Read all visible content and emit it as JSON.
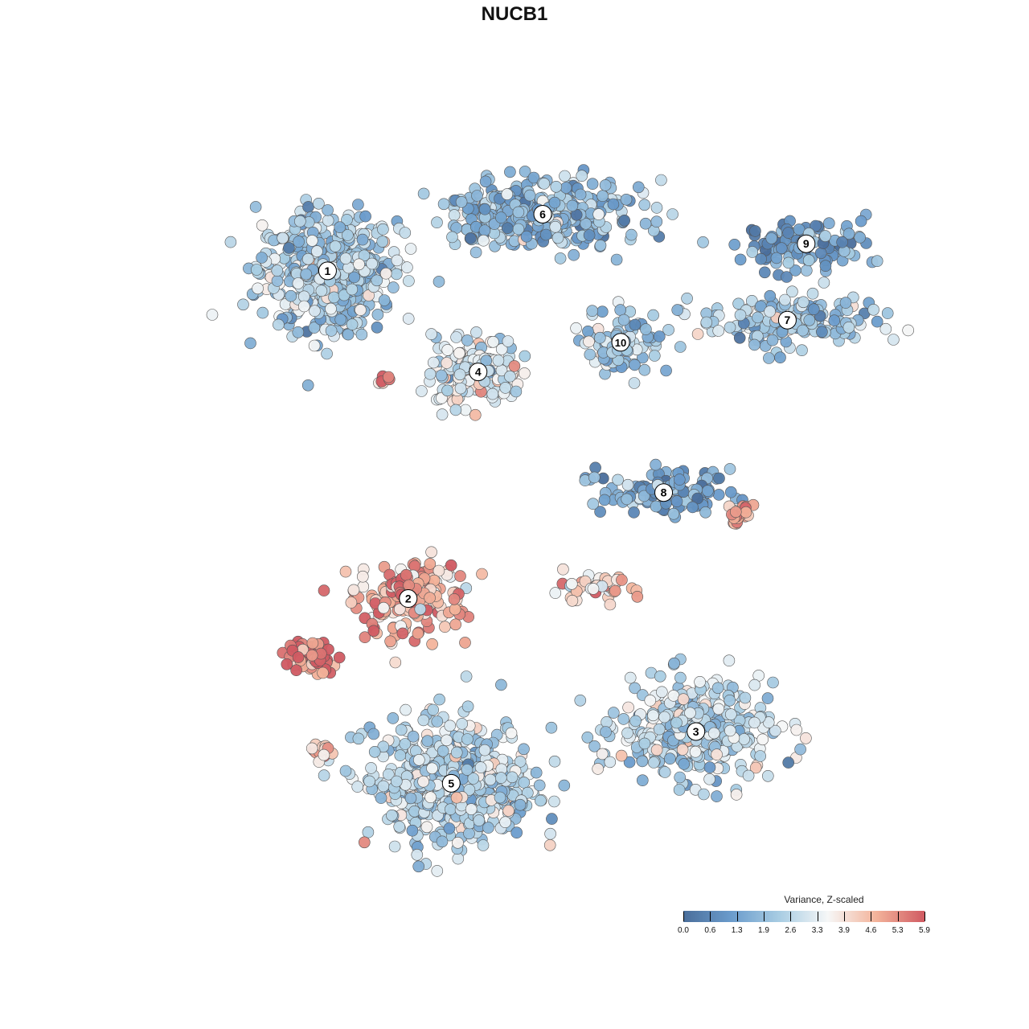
{
  "chart_data": {
    "type": "scatter",
    "title": "NUCB1",
    "xlabel": "",
    "ylabel": "",
    "grid": false,
    "axes_visible": false,
    "legend": {
      "title": "Variance, Z-scaled",
      "placement": "bottom-right",
      "ticks": [
        "0.0",
        "0.6",
        "1.3",
        "1.9",
        "2.6",
        "3.3",
        "3.9",
        "4.6",
        "5.3",
        "5.9"
      ],
      "range": [
        0.0,
        5.9
      ],
      "colors": [
        "#4a6e9b",
        "#6b9ccc",
        "#a9cde3",
        "#f6f7f7",
        "#f3b39a",
        "#d05a62"
      ]
    },
    "clusters": [
      {
        "label": "1",
        "cx": -7.2,
        "cy": 7.9,
        "sx": 2.3,
        "sy": 2.1,
        "n": 520,
        "mean": 2.3
      },
      {
        "label": "2",
        "cx": -4.2,
        "cy": -5.4,
        "sx": 1.9,
        "sy": 1.5,
        "n": 170,
        "mean": 4.6
      },
      {
        "label": "3",
        "cx": 6.5,
        "cy": -10.8,
        "sx": 2.6,
        "sy": 1.8,
        "n": 360,
        "mean": 2.5
      },
      {
        "label": "4",
        "cx": -1.6,
        "cy": 3.8,
        "sx": 1.5,
        "sy": 1.3,
        "n": 190,
        "mean": 3.2
      },
      {
        "label": "5",
        "cx": -2.6,
        "cy": -12.9,
        "sx": 2.8,
        "sy": 2.2,
        "n": 520,
        "mean": 2.6
      },
      {
        "label": "6",
        "cx": 0.8,
        "cy": 10.2,
        "sx": 3.4,
        "sy": 1.2,
        "n": 330,
        "mean": 1.9
      },
      {
        "label": "7",
        "cx": 9.9,
        "cy": 5.9,
        "sx": 3.0,
        "sy": 1.0,
        "n": 190,
        "mean": 2.2
      },
      {
        "label": "8",
        "cx": 5.3,
        "cy": -1.1,
        "sx": 2.2,
        "sy": 0.8,
        "n": 120,
        "mean": 1.3
      },
      {
        "label": "9",
        "cx": 10.6,
        "cy": 9.0,
        "sx": 2.1,
        "sy": 0.9,
        "n": 110,
        "mean": 1.2
      },
      {
        "label": "10",
        "cx": 3.7,
        "cy": 5.0,
        "sx": 1.3,
        "sy": 1.2,
        "n": 90,
        "mean": 2.3
      }
    ],
    "hotspots": [
      {
        "cx": -7.8,
        "cy": -7.7,
        "sx": 0.8,
        "sy": 0.6,
        "n": 70,
        "mean": 5.4
      },
      {
        "cx": -4.4,
        "cy": -5.0,
        "sx": 0.6,
        "sy": 0.5,
        "n": 25,
        "mean": 5.0
      },
      {
        "cx": 8.1,
        "cy": -1.9,
        "sx": 0.4,
        "sy": 0.4,
        "n": 25,
        "mean": 4.8
      },
      {
        "cx": 2.7,
        "cy": -5.0,
        "sx": 1.4,
        "sy": 0.5,
        "n": 45,
        "mean": 4.1
      },
      {
        "cx": -7.6,
        "cy": -11.6,
        "sx": 0.4,
        "sy": 0.4,
        "n": 16,
        "mean": 4.5
      },
      {
        "cx": -5.1,
        "cy": 3.4,
        "sx": 0.3,
        "sy": 0.2,
        "n": 6,
        "mean": 5.6
      }
    ],
    "xlim": [
      -14,
      15
    ],
    "ylim": [
      -17,
      14
    ]
  }
}
